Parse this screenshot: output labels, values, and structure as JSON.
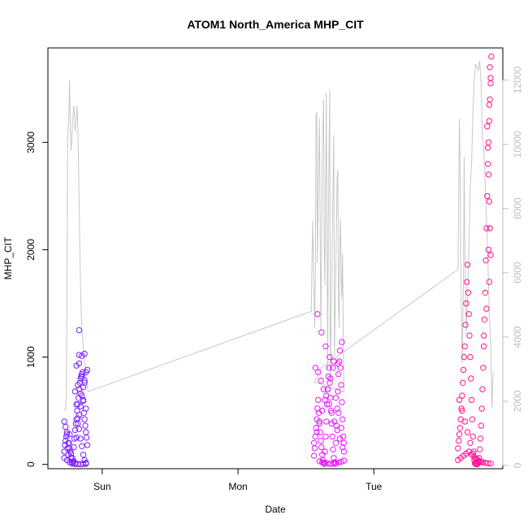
{
  "chart_data": {
    "type": "scatter",
    "title": "ATOM1 North_America MHP_CIT",
    "xlabel": "Date",
    "ylabel": "MHP_CIT",
    "x_ticks": [
      {
        "label": "Sun",
        "value": 1
      },
      {
        "label": "Mon",
        "value": 2
      },
      {
        "label": "Tue",
        "value": 3
      }
    ],
    "xlim": [
      0.6,
      3.95
    ],
    "ylim": [
      -40,
      3880
    ],
    "y_ticks": [
      0,
      1000,
      2000,
      3000
    ],
    "y2lim": [
      -100,
      13000
    ],
    "y2_ticks": [
      0,
      2000,
      4000,
      6000,
      8000,
      10000,
      12000
    ],
    "grid": false,
    "legend": "none",
    "colors": {
      "cluster1": "#7b1fff",
      "cluster2": "#e916ff",
      "cluster3": "#ff1493",
      "line": "#c8c8c8"
    },
    "series": [
      {
        "axis": "left",
        "color_key": "cluster1",
        "x": [
          0.72,
          0.725,
          0.73,
          0.735,
          0.74,
          0.745,
          0.75,
          0.755,
          0.76,
          0.765,
          0.77,
          0.775,
          0.78,
          0.785,
          0.79,
          0.795,
          0.8,
          0.805,
          0.81,
          0.815,
          0.82,
          0.825,
          0.83,
          0.835,
          0.84,
          0.845,
          0.85,
          0.855,
          0.86,
          0.865,
          0.87,
          0.875,
          0.88,
          0.885,
          0.89,
          0.72,
          0.73,
          0.74,
          0.75,
          0.76,
          0.77,
          0.78,
          0.79,
          0.8,
          0.81,
          0.82,
          0.83,
          0.84,
          0.85,
          0.86,
          0.87,
          0.88,
          0.89,
          0.8,
          0.81,
          0.82,
          0.83,
          0.84,
          0.85,
          0.86,
          0.87,
          0.88,
          0.81,
          0.83,
          0.85,
          0.87,
          0.82,
          0.84,
          0.86,
          0.88,
          0.83,
          0.85,
          0.87,
          0.72,
          0.74,
          0.76,
          0.78,
          0.8,
          0.82,
          0.84,
          0.86,
          0.88,
          0.83
        ],
        "y": [
          120,
          180,
          220,
          260,
          300,
          150,
          90,
          200,
          280,
          120,
          60,
          20,
          10,
          30,
          160,
          240,
          320,
          380,
          420,
          500,
          560,
          620,
          700,
          760,
          800,
          820,
          840,
          860,
          600,
          480,
          420,
          360,
          300,
          250,
          180,
          400,
          350,
          280,
          200,
          150,
          100,
          60,
          30,
          10,
          250,
          380,
          460,
          540,
          640,
          720,
          780,
          860,
          880,
          680,
          560,
          430,
          330,
          240,
          170,
          90,
          40,
          15,
          920,
          940,
          1010,
          1030,
          740,
          660,
          590,
          520,
          1250,
          820,
          760,
          60,
          40,
          20,
          8,
          5,
          3,
          2,
          4,
          6,
          1020
        ]
      },
      {
        "axis": "left",
        "color_key": "cluster2",
        "x": [
          2.56,
          2.565,
          2.57,
          2.575,
          2.58,
          2.585,
          2.59,
          2.595,
          2.6,
          2.605,
          2.61,
          2.615,
          2.62,
          2.625,
          2.63,
          2.635,
          2.64,
          2.645,
          2.65,
          2.655,
          2.66,
          2.665,
          2.67,
          2.675,
          2.68,
          2.685,
          2.69,
          2.695,
          2.7,
          2.705,
          2.71,
          2.715,
          2.72,
          2.725,
          2.73,
          2.735,
          2.74,
          2.745,
          2.75,
          2.755,
          2.76,
          2.765,
          2.77,
          2.775,
          2.78,
          2.56,
          2.58,
          2.6,
          2.62,
          2.64,
          2.66,
          2.68,
          2.7,
          2.72,
          2.74,
          2.76,
          2.78,
          2.57,
          2.59,
          2.61,
          2.63,
          2.65,
          2.67,
          2.69,
          2.71,
          2.73,
          2.75,
          2.77,
          2.6,
          2.62,
          2.64,
          2.66,
          2.68,
          2.7,
          2.72,
          2.74,
          2.76,
          2.78,
          2.585,
          2.615,
          2.645,
          2.675,
          2.705,
          2.735,
          2.765
        ],
        "y": [
          80,
          150,
          260,
          340,
          420,
          520,
          600,
          480,
          380,
          300,
          220,
          160,
          90,
          40,
          15,
          5,
          120,
          260,
          400,
          560,
          700,
          820,
          900,
          760,
          620,
          500,
          380,
          260,
          140,
          60,
          20,
          8,
          200,
          360,
          520,
          680,
          840,
          960,
          1060,
          900,
          740,
          580,
          420,
          260,
          120,
          200,
          300,
          400,
          500,
          600,
          700,
          800,
          900,
          620,
          480,
          340,
          200,
          900,
          860,
          780,
          700,
          640,
          560,
          480,
          400,
          320,
          240,
          160,
          30,
          20,
          15,
          10,
          5,
          8,
          12,
          18,
          25,
          35,
          1400,
          1230,
          1100,
          1000,
          960,
          940,
          1140
        ]
      },
      {
        "axis": "left",
        "color_key": "cluster3",
        "x": [
          3.62,
          3.625,
          3.63,
          3.635,
          3.64,
          3.645,
          3.65,
          3.655,
          3.66,
          3.665,
          3.67,
          3.675,
          3.68,
          3.685,
          3.69,
          3.695,
          3.7,
          3.705,
          3.71,
          3.715,
          3.72,
          3.725,
          3.73,
          3.735,
          3.74,
          3.745,
          3.75,
          3.755,
          3.76,
          3.765,
          3.77,
          3.775,
          3.78,
          3.785,
          3.79,
          3.795,
          3.8,
          3.805,
          3.81,
          3.815,
          3.82,
          3.825,
          3.83,
          3.835,
          3.84,
          3.845,
          3.85,
          3.855,
          3.86,
          3.865,
          3.62,
          3.64,
          3.66,
          3.68,
          3.7,
          3.72,
          3.74,
          3.76,
          3.78,
          3.8,
          3.82,
          3.84,
          3.86,
          3.63,
          3.65,
          3.67,
          3.69,
          3.71,
          3.73,
          3.75,
          3.77,
          3.79,
          3.81,
          3.83,
          3.85,
          3.86,
          3.855,
          3.85,
          3.845,
          3.84,
          3.835,
          3.85,
          3.86,
          3.855,
          3.845
        ],
        "y": [
          150,
          220,
          280,
          340,
          420,
          520,
          640,
          760,
          880,
          1000,
          1100,
          1300,
          1500,
          1700,
          1860,
          1600,
          1400,
          1200,
          1000,
          800,
          600,
          420,
          260,
          120,
          40,
          10,
          5,
          3,
          2,
          8,
          20,
          60,
          140,
          240,
          360,
          520,
          700,
          900,
          1100,
          1350,
          1600,
          1900,
          2200,
          2500,
          2800,
          3000,
          3200,
          3400,
          3600,
          3800,
          40,
          60,
          80,
          100,
          120,
          90,
          70,
          50,
          30,
          20,
          15,
          10,
          8,
          600,
          500,
          400,
          300,
          200,
          100,
          50,
          30,
          20,
          1200,
          1450,
          1700,
          1950,
          2200,
          2450,
          2700,
          2950,
          3150,
          3350,
          3550,
          3700,
          2000
        ]
      },
      {
        "axis": "right",
        "color_key": "line",
        "type": "line",
        "x": [
          0.72,
          0.73,
          0.735,
          0.74,
          0.745,
          0.75,
          0.755,
          0.76,
          0.765,
          0.77,
          0.775,
          0.78,
          0.785,
          0.79,
          0.795,
          0.8,
          0.805,
          0.81,
          0.815,
          0.82,
          0.825,
          0.83,
          0.835,
          0.84,
          0.845,
          0.85,
          0.855,
          0.86,
          0.865,
          0.87,
          0.875,
          0.88,
          0.885,
          0.89,
          0.895,
          2.54,
          2.545,
          2.55,
          2.56,
          2.565,
          2.57,
          2.575,
          2.58,
          2.585,
          2.59,
          2.6,
          2.61,
          2.615,
          2.62,
          2.625,
          2.63,
          2.635,
          2.64,
          2.65,
          2.66,
          2.665,
          2.67,
          2.675,
          2.68,
          2.69,
          2.7,
          2.705,
          2.71,
          2.72,
          2.73,
          2.735,
          2.74,
          2.745,
          2.75,
          2.755,
          2.76,
          2.765,
          2.77,
          2.775,
          2.78,
          2.56,
          2.58,
          2.6,
          3.62,
          3.625,
          3.63,
          3.635,
          3.64,
          3.65,
          3.66,
          3.665,
          3.67,
          3.68,
          3.69,
          3.7,
          3.71,
          3.72,
          3.73,
          3.74,
          3.75,
          3.76,
          3.77,
          3.78,
          3.79,
          3.8,
          3.81,
          3.82,
          3.83,
          3.84,
          3.85,
          3.86,
          3.865,
          3.87,
          3.875,
          3.88
        ],
        "y": [
          1700,
          1800,
          2200,
          5000,
          10000,
          10600,
          11000,
          12000,
          10500,
          9800,
          10000,
          10600,
          10800,
          11200,
          11000,
          10400,
          10600,
          10800,
          11200,
          10600,
          9500,
          8200,
          6800,
          5600,
          4800,
          4300,
          4000,
          3700,
          3500,
          3300,
          3100,
          2900,
          2700,
          2500,
          2300,
          4800,
          6400,
          7600,
          5200,
          4300,
          6000,
          10900,
          11000,
          6300,
          8300,
          10800,
          4200,
          6400,
          9600,
          10600,
          11400,
          6800,
          5600,
          11600,
          3000,
          7200,
          9600,
          11700,
          2600,
          5800,
          8700,
          10300,
          3400,
          6100,
          9000,
          9200,
          5000,
          4300,
          6900,
          7700,
          5800,
          5200,
          6600,
          4000,
          2300,
          2600,
          2700,
          3000,
          6100,
          8300,
          10800,
          9500,
          6400,
          3200,
          5600,
          9600,
          7000,
          4100,
          5100,
          6700,
          8700,
          9400,
          11000,
          12000,
          12500,
          12400,
          12300,
          12600,
          11900,
          10200,
          9800,
          8800,
          7600,
          6400,
          4800,
          3800,
          2800,
          1800,
          2600,
          2900
        ]
      }
    ]
  }
}
